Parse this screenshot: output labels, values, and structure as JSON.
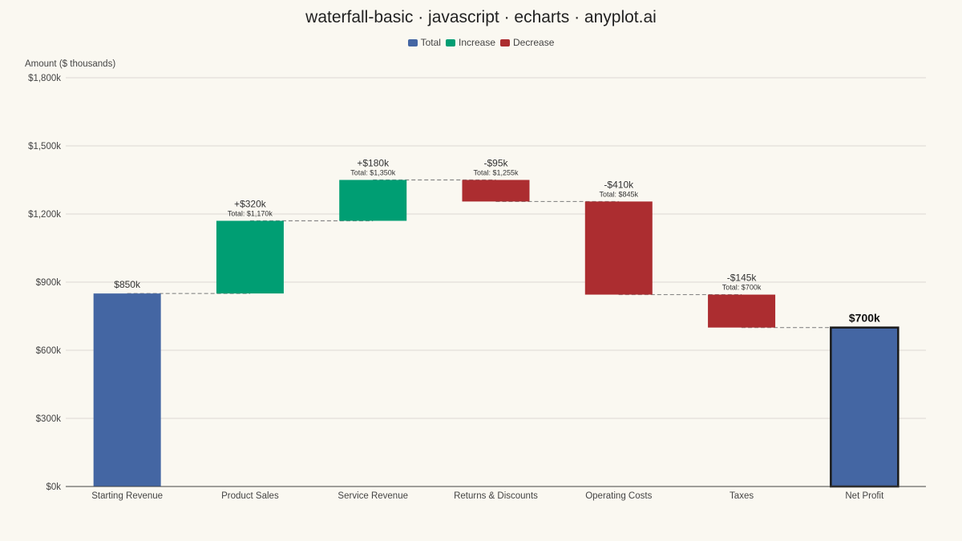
{
  "title": "waterfall-basic · javascript · echarts · anyplot.ai",
  "legend": [
    {
      "label": "Total",
      "color": "#4466A3"
    },
    {
      "label": "Increase",
      "color": "#009E73"
    },
    {
      "label": "Decrease",
      "color": "#AC2D30"
    }
  ],
  "chart_data": {
    "type": "bar",
    "subtype": "waterfall",
    "ylabel": "Amount ($ thousands)",
    "ylim": [
      0,
      1800
    ],
    "yticks": [
      0,
      300,
      600,
      900,
      1200,
      1500,
      1800
    ],
    "ytick_labels": [
      "$0k",
      "$300k",
      "$600k",
      "$900k",
      "$1,200k",
      "$1,500k",
      "$1,800k"
    ],
    "grid": true,
    "legend_position": "top-center",
    "categories": [
      "Starting Revenue",
      "Product Sales",
      "Service Revenue",
      "Returns & Discounts",
      "Operating Costs",
      "Taxes",
      "Net Profit"
    ],
    "steps": [
      {
        "kind": "total",
        "value": 850,
        "base": 0,
        "top": 850,
        "label": "$850k",
        "sublabel": ""
      },
      {
        "kind": "increase",
        "value": 320,
        "base": 850,
        "top": 1170,
        "label": "+$320k",
        "sublabel": "Total: $1,170k"
      },
      {
        "kind": "increase",
        "value": 180,
        "base": 1170,
        "top": 1350,
        "label": "+$180k",
        "sublabel": "Total: $1,350k"
      },
      {
        "kind": "decrease",
        "value": -95,
        "base": 1255,
        "top": 1350,
        "label": "-$95k",
        "sublabel": "Total: $1,255k"
      },
      {
        "kind": "decrease",
        "value": -410,
        "base": 845,
        "top": 1255,
        "label": "-$410k",
        "sublabel": "Total: $845k"
      },
      {
        "kind": "decrease",
        "value": -145,
        "base": 700,
        "top": 845,
        "label": "-$145k",
        "sublabel": "Total: $700k"
      },
      {
        "kind": "final",
        "value": 700,
        "base": 0,
        "top": 700,
        "label": "$700k",
        "sublabel": ""
      }
    ],
    "connector_levels": [
      850,
      1170,
      1350,
      1255,
      845,
      700
    ],
    "colors": {
      "total": "#4466A3",
      "increase": "#009E73",
      "decrease": "#AC2D30",
      "final_border": "#1A1A1A"
    }
  }
}
